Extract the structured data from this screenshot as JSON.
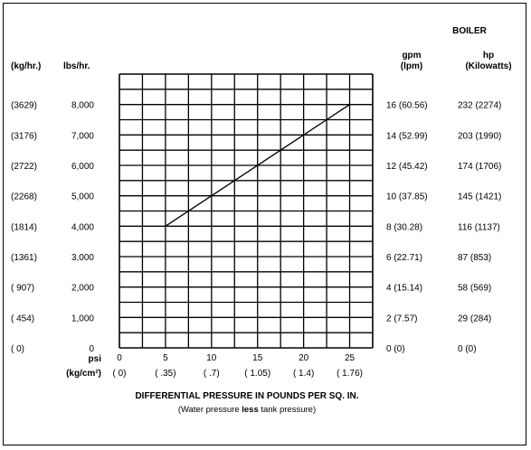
{
  "chart_data": {
    "type": "line",
    "title": "BOILER",
    "xlabel": "DIFFERENTIAL PRESSURE IN POUNDS PER SQ. IN.",
    "xlabel_sub_parts": [
      "(Water pressure ",
      "less",
      " tank pressure)"
    ],
    "x_unit_label": "psi",
    "x_alt_unit_label": "(kg/cm²)",
    "x_ticks": [
      "0",
      "5",
      "10",
      "15",
      "20",
      "25"
    ],
    "x_alt_ticks": [
      "( 0)",
      "( .35)",
      "( .7)",
      "( 1.05)",
      "( 1.4)",
      "( 1.76)"
    ],
    "xlim": [
      0,
      27.5
    ],
    "ylim": [
      0,
      9000
    ],
    "y_ticks": [
      0,
      1000,
      2000,
      3000,
      4000,
      5000,
      6000,
      7000,
      8000
    ],
    "y_left": {
      "header": "lbs/hr.",
      "labels": [
        "0",
        "1,000",
        "2,000",
        "3,000",
        "4,000",
        "5,000",
        "6,000",
        "7,000",
        "8,000"
      ]
    },
    "y_left_alt": {
      "header": "(kg/hr.)",
      "labels": [
        "( 0)",
        "( 454)",
        "( 907)",
        "(1361)",
        "(1814)",
        "(2268)",
        "(2722)",
        "(3176)",
        "(3629)"
      ]
    },
    "y_right_gpm": {
      "header": "gpm",
      "header_sub": "(lpm)",
      "labels": [
        "0  (0)",
        "2  (7.57)",
        "4  (15.14)",
        "6  (22.71)",
        "8  (30.28)",
        "10 (37.85)",
        "12 (45.42)",
        "14 (52.99)",
        "16 (60.56)"
      ]
    },
    "y_right_hp": {
      "header": "hp",
      "header_sub": "(Kilowatts)",
      "labels": [
        "0    (0)",
        "29  (284)",
        "58  (569)",
        "87  (853)",
        "116 (1137)",
        "145 (1421)",
        "174 (1706)",
        "203 (1990)",
        "232 (2274)"
      ]
    },
    "grid": true,
    "series": [
      {
        "x": [
          5,
          25
        ],
        "y": [
          4000,
          8000
        ]
      }
    ]
  }
}
